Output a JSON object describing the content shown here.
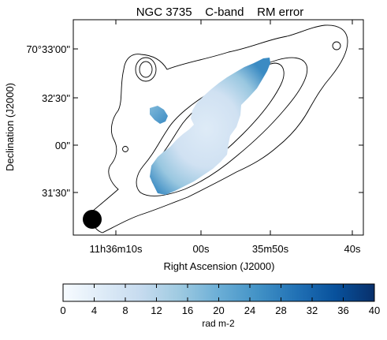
{
  "chart_data": {
    "type": "heatmap",
    "title": "NGC 3735    C-band    RM error",
    "xlabel": "Right Ascension (J2000)",
    "ylabel": "Declination (J2000)",
    "x_ticks": [
      "11h36m10s",
      "00s",
      "35m50s",
      "40s"
    ],
    "y_ticks": [
      "70°33'00\"",
      "32'30\"",
      "00\"",
      "31'30\""
    ],
    "colorbar": {
      "label": "rad m-2",
      "range": [
        0,
        40
      ],
      "ticks": [
        "0",
        "4",
        "8",
        "12",
        "16",
        "20",
        "24",
        "28",
        "32",
        "36",
        "40"
      ],
      "colormap": [
        "#f7fbff",
        "#deebf7",
        "#c6dbef",
        "#9ecae1",
        "#6baed6",
        "#4292c6",
        "#2171b5",
        "#08519c",
        "#08306b"
      ]
    },
    "regions": [
      {
        "name": "main",
        "rm_error_typical": 5,
        "rm_error_edge": 26
      },
      {
        "name": "blob",
        "rm_error_typical": 22
      }
    ],
    "beam": "filled circle, lower-left",
    "contours": 3,
    "grid": false
  }
}
